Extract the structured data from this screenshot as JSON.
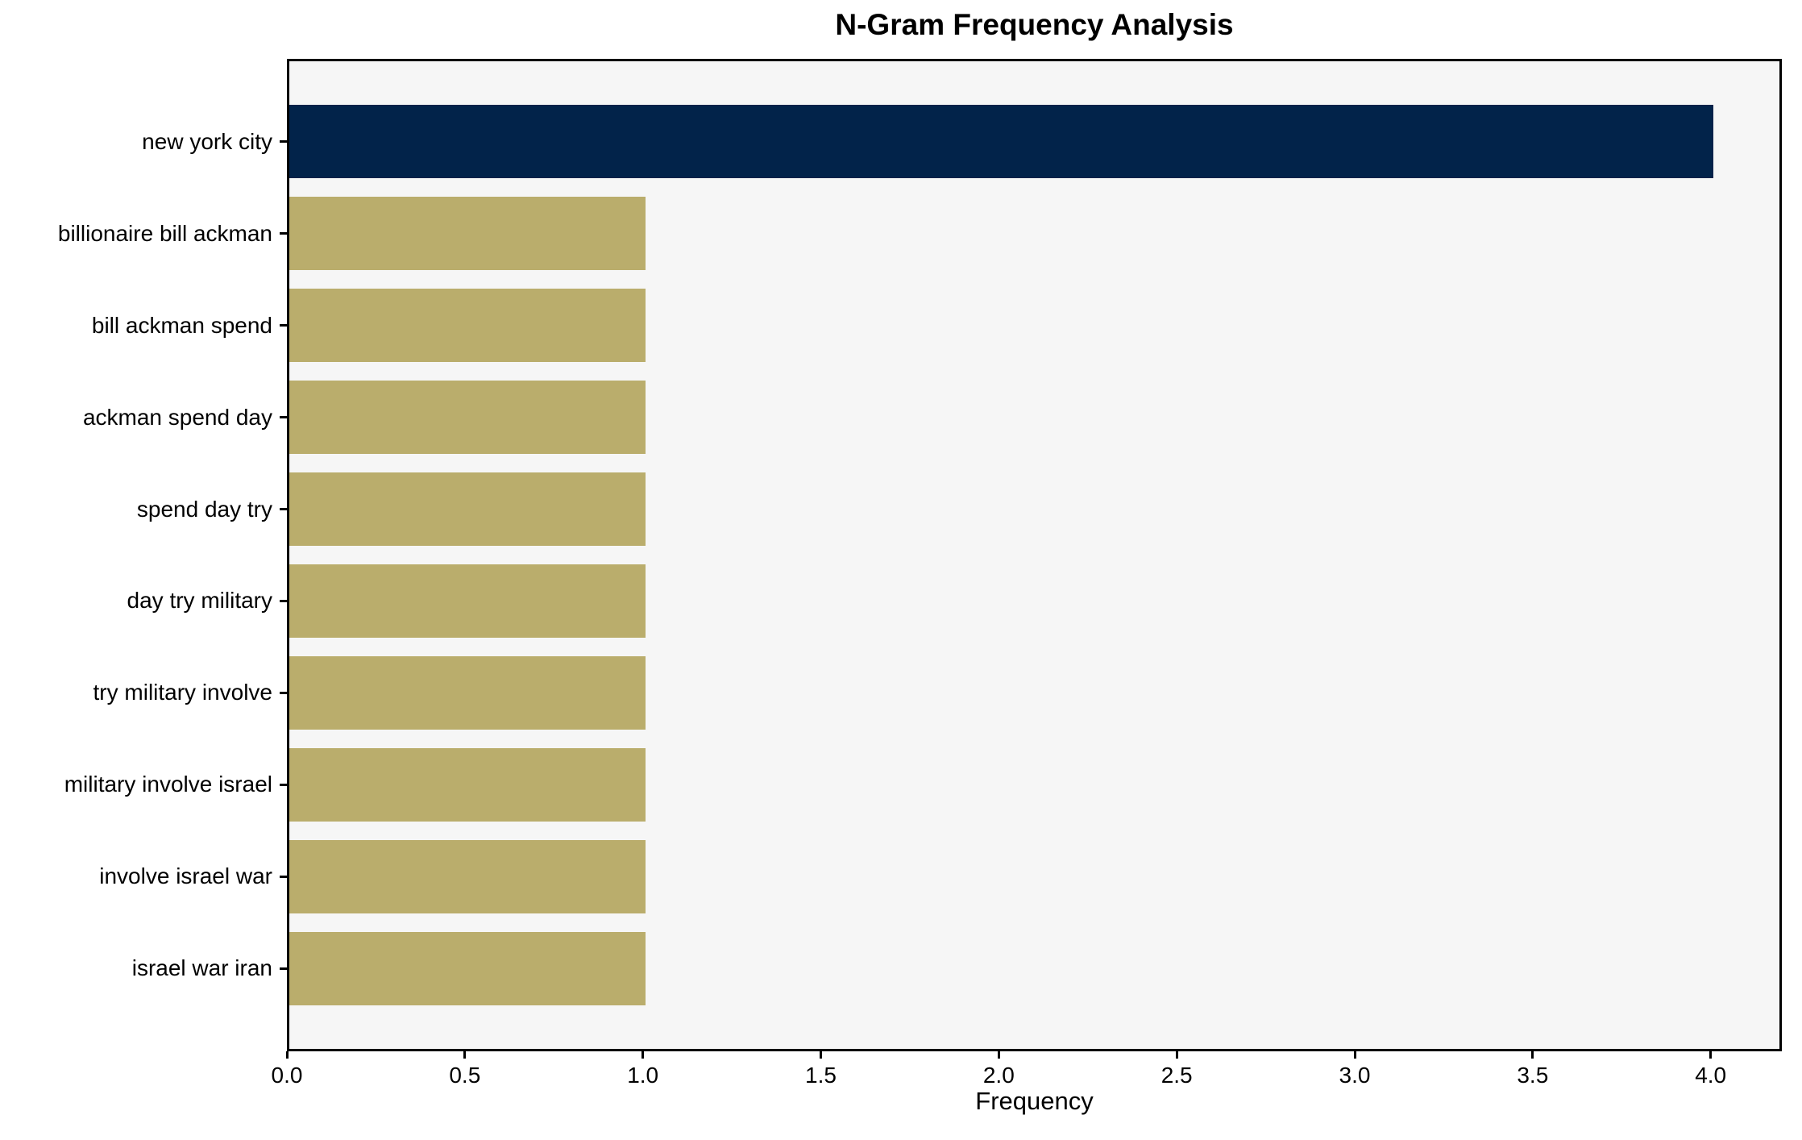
{
  "chart_data": {
    "type": "bar",
    "orientation": "horizontal",
    "title": "N-Gram Frequency Analysis",
    "xlabel": "Frequency",
    "ylabel": "",
    "categories": [
      "new york city",
      "billionaire bill ackman",
      "bill ackman spend",
      "ackman spend day",
      "spend day try",
      "day try military",
      "try military involve",
      "military involve israel",
      "involve israel war",
      "israel war iran"
    ],
    "values": [
      4,
      1,
      1,
      1,
      1,
      1,
      1,
      1,
      1,
      1
    ],
    "bar_colors": [
      "#02234a",
      "#baad6c",
      "#baad6c",
      "#baad6c",
      "#baad6c",
      "#baad6c",
      "#baad6c",
      "#baad6c",
      "#baad6c",
      "#baad6c"
    ],
    "xlim": [
      0,
      4.2
    ],
    "ylim_units": [
      -0.9,
      9.9
    ],
    "bar_height_units": 0.8,
    "xticks": [
      0.0,
      0.5,
      1.0,
      1.5,
      2.0,
      2.5,
      3.0,
      3.5,
      4.0
    ],
    "xtick_labels": [
      "0.0",
      "0.5",
      "1.0",
      "1.5",
      "2.0",
      "2.5",
      "3.0",
      "3.5",
      "4.0"
    ],
    "grid": false,
    "legend": null,
    "plot_background": "#f6f6f6",
    "figure_background": "#ffffff",
    "spine_color": "#000000"
  }
}
